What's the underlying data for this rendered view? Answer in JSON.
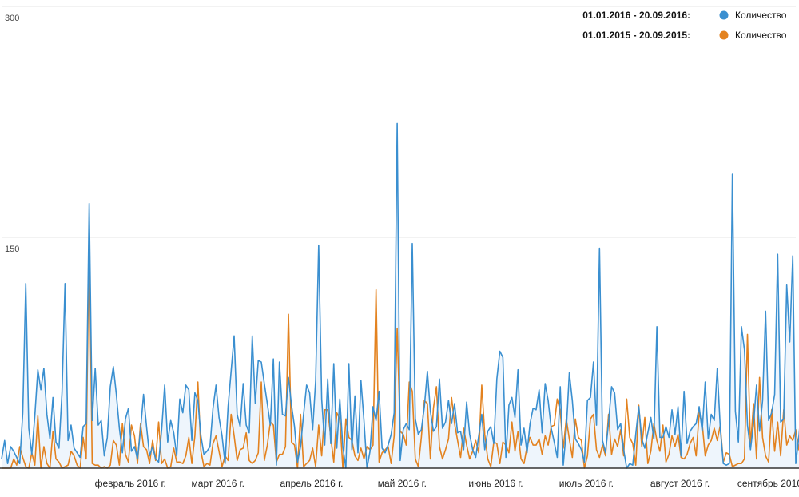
{
  "chart_data": {
    "type": "line",
    "ylim": [
      0,
      300
    ],
    "y_ticks": [
      {
        "value": 150,
        "label": "150"
      },
      {
        "value": 300,
        "label": "300"
      }
    ],
    "x_range": [
      0,
      263
    ],
    "x_ticks": [
      {
        "day": 31,
        "label": "февраль 2016 г."
      },
      {
        "day": 60,
        "label": "март 2016 г."
      },
      {
        "day": 91,
        "label": "апрель 2016 г."
      },
      {
        "day": 121,
        "label": "май 2016 г."
      },
      {
        "day": 152,
        "label": "июнь 2016 г."
      },
      {
        "day": 182,
        "label": "июль 2016 г."
      },
      {
        "day": 213,
        "label": "август 2016 г."
      },
      {
        "day": 244,
        "label": "сентябрь 2016 г."
      }
    ],
    "grid": true,
    "legend_position": "top-right",
    "series": [
      {
        "name": "Количество",
        "range": "01.01.2016 - 20.09.2016:",
        "color": "#3a8fd0",
        "values": [
          6,
          18,
          3,
          14,
          11,
          7,
          3,
          36,
          120,
          26,
          9,
          34,
          64,
          51,
          65,
          35,
          19,
          46,
          17,
          13,
          49,
          120,
          18,
          28,
          13,
          10,
          7,
          27,
          29,
          172,
          31,
          65,
          28,
          31,
          8,
          20,
          53,
          66,
          48,
          26,
          10,
          32,
          39,
          11,
          14,
          6,
          25,
          48,
          27,
          8,
          14,
          6,
          4,
          25,
          54,
          17,
          31,
          23,
          8,
          45,
          36,
          54,
          51,
          18,
          49,
          44,
          21,
          9,
          11,
          14,
          39,
          54,
          33,
          21,
          3,
          40,
          63,
          86,
          35,
          27,
          55,
          28,
          23,
          86,
          42,
          70,
          69,
          55,
          42,
          28,
          71,
          2,
          69,
          35,
          34,
          59,
          41,
          27,
          4,
          14,
          35,
          54,
          49,
          25,
          57,
          145,
          45,
          15,
          58,
          16,
          68,
          13,
          45,
          14,
          0,
          68,
          12,
          47,
          10,
          57,
          31,
          0,
          11,
          40,
          31,
          50,
          13,
          10,
          15,
          22,
          36,
          224,
          5,
          25,
          29,
          25,
          146,
          32,
          22,
          25,
          40,
          63,
          37,
          24,
          27,
          58,
          26,
          30,
          44,
          29,
          42,
          23,
          24,
          12,
          43,
          22,
          12,
          7,
          21,
          35,
          12,
          24,
          27,
          16,
          58,
          76,
          72,
          7,
          41,
          46,
          33,
          64,
          15,
          26,
          10,
          29,
          39,
          38,
          51,
          23,
          55,
          44,
          26,
          17,
          7,
          53,
          2,
          25,
          62,
          44,
          19,
          16,
          12,
          4,
          44,
          46,
          69,
          28,
          143,
          18,
          10,
          30,
          53,
          49,
          25,
          29,
          12,
          0,
          3,
          2,
          22,
          40,
          19,
          13,
          23,
          33,
          19,
          92,
          20,
          20,
          27,
          20,
          38,
          22,
          40,
          8,
          50,
          16,
          24,
          27,
          29,
          40,
          24,
          56,
          19,
          35,
          31,
          65,
          26,
          3,
          2,
          3,
          191,
          37,
          17,
          92,
          77,
          28,
          12,
          29,
          54,
          24,
          44,
          102,
          31,
          36,
          48,
          139,
          30,
          32,
          119,
          82,
          138,
          3,
          20,
          42,
          72,
          99
        ]
      },
      {
        "name": "Количество",
        "range": "01.01.2015 - 20.09.2015:",
        "color": "#e3821f",
        "values": [
          0,
          0,
          0,
          0,
          6,
          2,
          14,
          7,
          1,
          0,
          10,
          2,
          34,
          0,
          14,
          3,
          0,
          24,
          6,
          4,
          0,
          1,
          2,
          11,
          8,
          2,
          0,
          20,
          6,
          155,
          3,
          2,
          2,
          0,
          1,
          0,
          2,
          18,
          15,
          2,
          29,
          9,
          4,
          28,
          21,
          3,
          29,
          14,
          12,
          3,
          18,
          5,
          30,
          3,
          6,
          0,
          1,
          13,
          4,
          4,
          3,
          8,
          20,
          3,
          21,
          56,
          11,
          1,
          3,
          2,
          16,
          21,
          11,
          1,
          8,
          5,
          35,
          21,
          5,
          12,
          13,
          23,
          5,
          3,
          5,
          10,
          56,
          5,
          15,
          30,
          28,
          4,
          9,
          9,
          14,
          100,
          17,
          15,
          0,
          35,
          1,
          3,
          5,
          13,
          1,
          28,
          8,
          38,
          38,
          20,
          4,
          36,
          32,
          0,
          32,
          20,
          18,
          8,
          5,
          13,
          6,
          14,
          12,
          15,
          116,
          4,
          10,
          12,
          14,
          3,
          21,
          91,
          24,
          22,
          15,
          56,
          50,
          6,
          1,
          20,
          44,
          42,
          6,
          39,
          53,
          14,
          6,
          12,
          19,
          46,
          29,
          18,
          7,
          26,
          15,
          6,
          11,
          18,
          10,
          54,
          22,
          6,
          1,
          17,
          16,
          3,
          17,
          15,
          10,
          30,
          11,
          24,
          6,
          3,
          14,
          20,
          15,
          15,
          19,
          9,
          21,
          15,
          27,
          28,
          45,
          37,
          13,
          32,
          19,
          7,
          32,
          20,
          18,
          0,
          8,
          32,
          35,
          12,
          7,
          15,
          8,
          35,
          9,
          19,
          14,
          25,
          8,
          45,
          20,
          16,
          2,
          41,
          14,
          33,
          3,
          11,
          29,
          18,
          11,
          28,
          4,
          9,
          21,
          14,
          22,
          7,
          6,
          9,
          16,
          20,
          8,
          36,
          29,
          8,
          15,
          18,
          26,
          18,
          28,
          4,
          10,
          9,
          1,
          2,
          3,
          3,
          6,
          87,
          14,
          42,
          6,
          59,
          20,
          8,
          4,
          38,
          11,
          30,
          8,
          38,
          15,
          21,
          18,
          25,
          12,
          30,
          33
        ]
      }
    ]
  }
}
